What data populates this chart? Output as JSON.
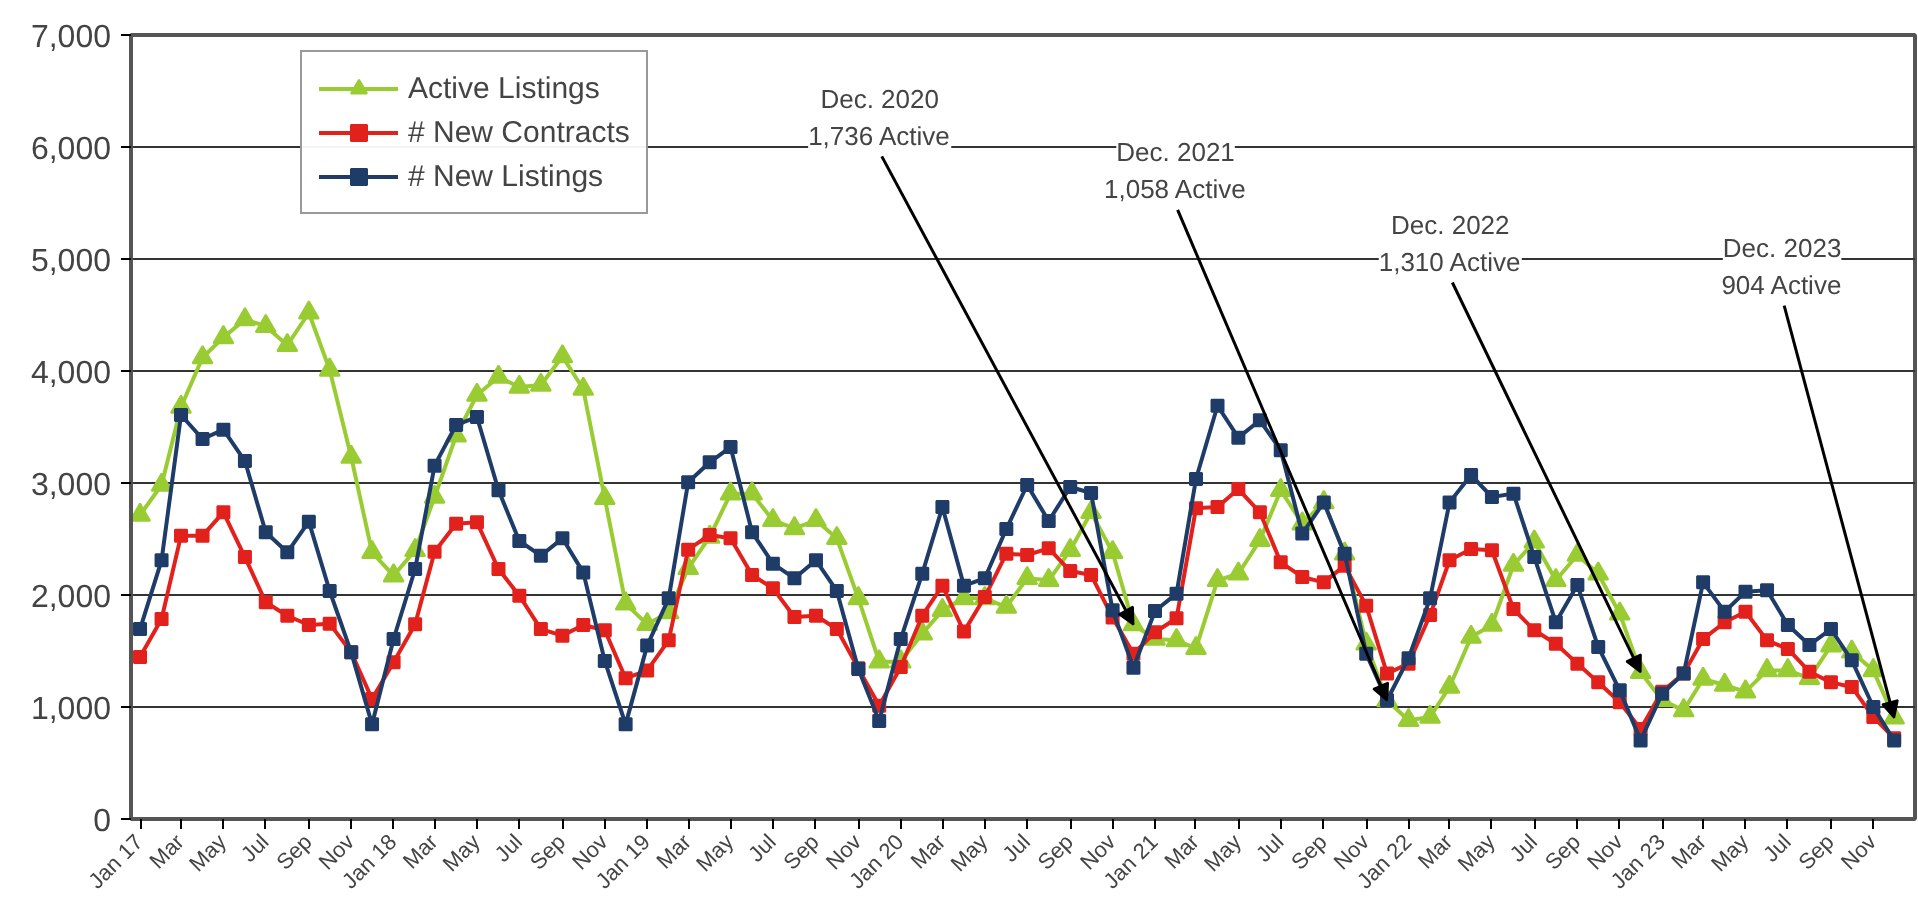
{
  "chart_data": {
    "type": "line",
    "x": [
      "2017-01",
      "2017-02",
      "2017-03",
      "2017-04",
      "2017-05",
      "2017-06",
      "2017-07",
      "2017-08",
      "2017-09",
      "2017-10",
      "2017-11",
      "2017-12",
      "2018-01",
      "2018-02",
      "2018-03",
      "2018-04",
      "2018-05",
      "2018-06",
      "2018-07",
      "2018-08",
      "2018-09",
      "2018-10",
      "2018-11",
      "2018-12",
      "2019-01",
      "2019-02",
      "2019-03",
      "2019-04",
      "2019-05",
      "2019-06",
      "2019-07",
      "2019-08",
      "2019-09",
      "2019-10",
      "2019-11",
      "2019-12",
      "2020-01",
      "2020-02",
      "2020-03",
      "2020-04",
      "2020-05",
      "2020-06",
      "2020-07",
      "2020-08",
      "2020-09",
      "2020-10",
      "2020-11",
      "2020-12",
      "2021-01",
      "2021-02",
      "2021-03",
      "2021-04",
      "2021-05",
      "2021-06",
      "2021-07",
      "2021-08",
      "2021-09",
      "2021-10",
      "2021-11",
      "2021-12",
      "2022-01",
      "2022-02",
      "2022-03",
      "2022-04",
      "2022-05",
      "2022-06",
      "2022-07",
      "2022-08",
      "2022-09",
      "2022-10",
      "2022-11",
      "2022-12",
      "2023-01",
      "2023-02",
      "2023-03",
      "2023-04",
      "2023-05",
      "2023-06",
      "2023-07",
      "2023-08",
      "2023-09",
      "2023-10",
      "2023-11",
      "2023-12"
    ],
    "series": [
      {
        "name": "Active Listings",
        "color": "#99cc33",
        "marker": "triangle",
        "values": [
          2714,
          2982,
          3679,
          4120,
          4300,
          4460,
          4400,
          4230,
          4520,
          4010,
          3232,
          2381,
          2173,
          2399,
          2875,
          3423,
          3786,
          3946,
          3857,
          3875,
          4130,
          3839,
          2863,
          1923,
          1738,
          1845,
          2238,
          2518,
          2905,
          2905,
          2667,
          2595,
          2667,
          2506,
          1970,
          1405,
          1405,
          1655,
          1863,
          1970,
          1970,
          1893,
          2149,
          2131,
          2399,
          2738,
          2381,
          1736,
          1607,
          1595,
          1524,
          2131,
          2190,
          2488,
          2935,
          2637,
          2827,
          2369,
          1565,
          1058,
          881,
          911,
          1179,
          1625,
          1732,
          2268,
          2476,
          2131,
          2357,
          2190,
          1833,
          1310,
          1060,
          970,
          1250,
          1196,
          1137,
          1327,
          1327,
          1256,
          1548,
          1494,
          1327,
          904
        ]
      },
      {
        "name": "# New Contracts",
        "color": "#e3211c",
        "marker": "square",
        "values": [
          1446,
          1786,
          2530,
          2530,
          2738,
          2339,
          1935,
          1815,
          1732,
          1744,
          1488,
          1071,
          1399,
          1738,
          2387,
          2637,
          2649,
          2232,
          1994,
          1696,
          1637,
          1732,
          1685,
          1256,
          1327,
          1595,
          2405,
          2536,
          2506,
          2179,
          2060,
          1804,
          1815,
          1696,
          1345,
          1012,
          1357,
          1815,
          2083,
          1673,
          1982,
          2369,
          2357,
          2417,
          2214,
          2179,
          1798,
          1476,
          1667,
          1792,
          2774,
          2786,
          2946,
          2738,
          2292,
          2161,
          2113,
          2262,
          1905,
          1298,
          1387,
          1821,
          2310,
          2411,
          2399,
          1875,
          1685,
          1565,
          1387,
          1220,
          1042,
          804,
          1137,
          1298,
          1607,
          1756,
          1851,
          1595,
          1518,
          1315,
          1220,
          1179,
          911,
          720
        ]
      },
      {
        "name": "# New Listings",
        "color": "#1f3c68",
        "marker": "square",
        "values": [
          1696,
          2310,
          3607,
          3393,
          3476,
          3196,
          2560,
          2381,
          2655,
          2036,
          1488,
          845,
          1607,
          2232,
          3155,
          3518,
          3589,
          2935,
          2482,
          2351,
          2506,
          2202,
          1411,
          845,
          1548,
          1970,
          3006,
          3185,
          3321,
          2560,
          2280,
          2149,
          2310,
          2036,
          1339,
          875,
          1607,
          2190,
          2786,
          2083,
          2149,
          2589,
          2982,
          2661,
          2964,
          2911,
          1863,
          1351,
          1857,
          2012,
          3036,
          3690,
          3405,
          3560,
          3292,
          2548,
          2827,
          2369,
          1476,
          1060,
          1435,
          1970,
          2827,
          3071,
          2875,
          2905,
          2339,
          1756,
          2089,
          1536,
          1149,
          702,
          1119,
          1298,
          2113,
          1851,
          2030,
          2042,
          1732,
          1554,
          1696,
          1417,
          1000,
          700
        ]
      }
    ],
    "xlim": [
      "2016-12-19",
      "2023-12-31"
    ],
    "xticks": [
      {
        "value": "2017-01",
        "label": "Jan 17"
      },
      {
        "value": "2017-03",
        "label": "Mar"
      },
      {
        "value": "2017-05",
        "label": "May"
      },
      {
        "value": "2017-07",
        "label": "Jul"
      },
      {
        "value": "2017-09",
        "label": "Sep"
      },
      {
        "value": "2017-11",
        "label": "Nov"
      },
      {
        "value": "2018-01",
        "label": "Jan 18"
      },
      {
        "value": "2018-03",
        "label": "Mar"
      },
      {
        "value": "2018-05",
        "label": "May"
      },
      {
        "value": "2018-07",
        "label": "Jul"
      },
      {
        "value": "2018-09",
        "label": "Sep"
      },
      {
        "value": "2018-11",
        "label": "Nov"
      },
      {
        "value": "2019-01",
        "label": "Jan 19"
      },
      {
        "value": "2019-03",
        "label": "Mar"
      },
      {
        "value": "2019-05",
        "label": "May"
      },
      {
        "value": "2019-07",
        "label": "Jul"
      },
      {
        "value": "2019-09",
        "label": "Sep"
      },
      {
        "value": "2019-11",
        "label": "Nov"
      },
      {
        "value": "2020-01",
        "label": "Jan 20"
      },
      {
        "value": "2020-03",
        "label": "Mar"
      },
      {
        "value": "2020-05",
        "label": "May"
      },
      {
        "value": "2020-07",
        "label": "Jul"
      },
      {
        "value": "2020-09",
        "label": "Sep"
      },
      {
        "value": "2020-11",
        "label": "Nov"
      },
      {
        "value": "2021-01",
        "label": "Jan 21"
      },
      {
        "value": "2021-03",
        "label": "Mar"
      },
      {
        "value": "2021-05",
        "label": "May"
      },
      {
        "value": "2021-07",
        "label": "Jul"
      },
      {
        "value": "2021-09",
        "label": "Sep"
      },
      {
        "value": "2021-11",
        "label": "Nov"
      },
      {
        "value": "2022-01",
        "label": "Jan 22"
      },
      {
        "value": "2022-03",
        "label": "Mar"
      },
      {
        "value": "2022-05",
        "label": "May"
      },
      {
        "value": "2022-07",
        "label": "Jul"
      },
      {
        "value": "2022-09",
        "label": "Sep"
      },
      {
        "value": "2022-11",
        "label": "Nov"
      },
      {
        "value": "2023-01",
        "label": "Jan 23"
      },
      {
        "value": "2023-03",
        "label": "Mar"
      },
      {
        "value": "2023-05",
        "label": "May"
      },
      {
        "value": "2023-07",
        "label": "Jul"
      },
      {
        "value": "2023-09",
        "label": "Sep"
      },
      {
        "value": "2023-11",
        "label": "Nov"
      }
    ],
    "ylim": [
      0,
      7000
    ],
    "yticks": [
      0,
      {
        "value": 1000,
        "label": "1,000"
      },
      {
        "value": 2000,
        "label": "2,000"
      },
      {
        "value": 3000,
        "label": "3,000"
      },
      {
        "value": 4000,
        "label": "4,000"
      },
      {
        "value": 5000,
        "label": "5,000"
      },
      {
        "value": 6000,
        "label": "6,000"
      },
      {
        "value": 7000,
        "label": "7,000"
      }
    ],
    "annotations": [
      {
        "text": "Dec. 2020\n1,736 Active",
        "x": "2020-12",
        "y": 1736
      },
      {
        "text": "Dec. 2021\n1,058 Active",
        "x": "2021-12",
        "y": 1058
      },
      {
        "text": "Dec. 2022\n1,310 Active",
        "x": "2022-12",
        "y": 1310
      },
      {
        "text": "Dec. 2023\n904 Active",
        "x": "2023-12",
        "y": 904
      }
    ],
    "grid": "y",
    "legend": "top left",
    "line_style": "solid"
  }
}
